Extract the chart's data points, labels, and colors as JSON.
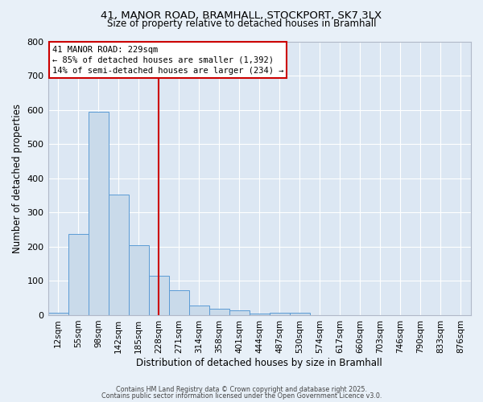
{
  "title_line1": "41, MANOR ROAD, BRAMHALL, STOCKPORT, SK7 3LX",
  "title_line2": "Size of property relative to detached houses in Bramhall",
  "xlabel": "Distribution of detached houses by size in Bramhall",
  "ylabel": "Number of detached properties",
  "bar_labels": [
    "12sqm",
    "55sqm",
    "98sqm",
    "142sqm",
    "185sqm",
    "228sqm",
    "271sqm",
    "314sqm",
    "358sqm",
    "401sqm",
    "444sqm",
    "487sqm",
    "530sqm",
    "574sqm",
    "617sqm",
    "660sqm",
    "703sqm",
    "746sqm",
    "790sqm",
    "833sqm",
    "876sqm"
  ],
  "bar_values": [
    8,
    238,
    595,
    353,
    205,
    115,
    72,
    27,
    18,
    13,
    5,
    6,
    8,
    0,
    0,
    0,
    0,
    0,
    0,
    0,
    0
  ],
  "bar_color": "#c9daea",
  "bar_edgecolor": "#5b9bd5",
  "background_color": "#e8f0f8",
  "plot_bg_color": "#dce7f3",
  "grid_color": "#ffffff",
  "vline_x": 5,
  "vline_color": "#cc0000",
  "annotation_text": "41 MANOR ROAD: 229sqm\n← 85% of detached houses are smaller (1,392)\n14% of semi-detached houses are larger (234) →",
  "annotation_box_color": "#ffffff",
  "annotation_box_edgecolor": "#cc0000",
  "ylim": [
    0,
    800
  ],
  "yticks": [
    0,
    100,
    200,
    300,
    400,
    500,
    600,
    700,
    800
  ],
  "footer_line1": "Contains HM Land Registry data © Crown copyright and database right 2025.",
  "footer_line2": "Contains public sector information licensed under the Open Government Licence v3.0."
}
